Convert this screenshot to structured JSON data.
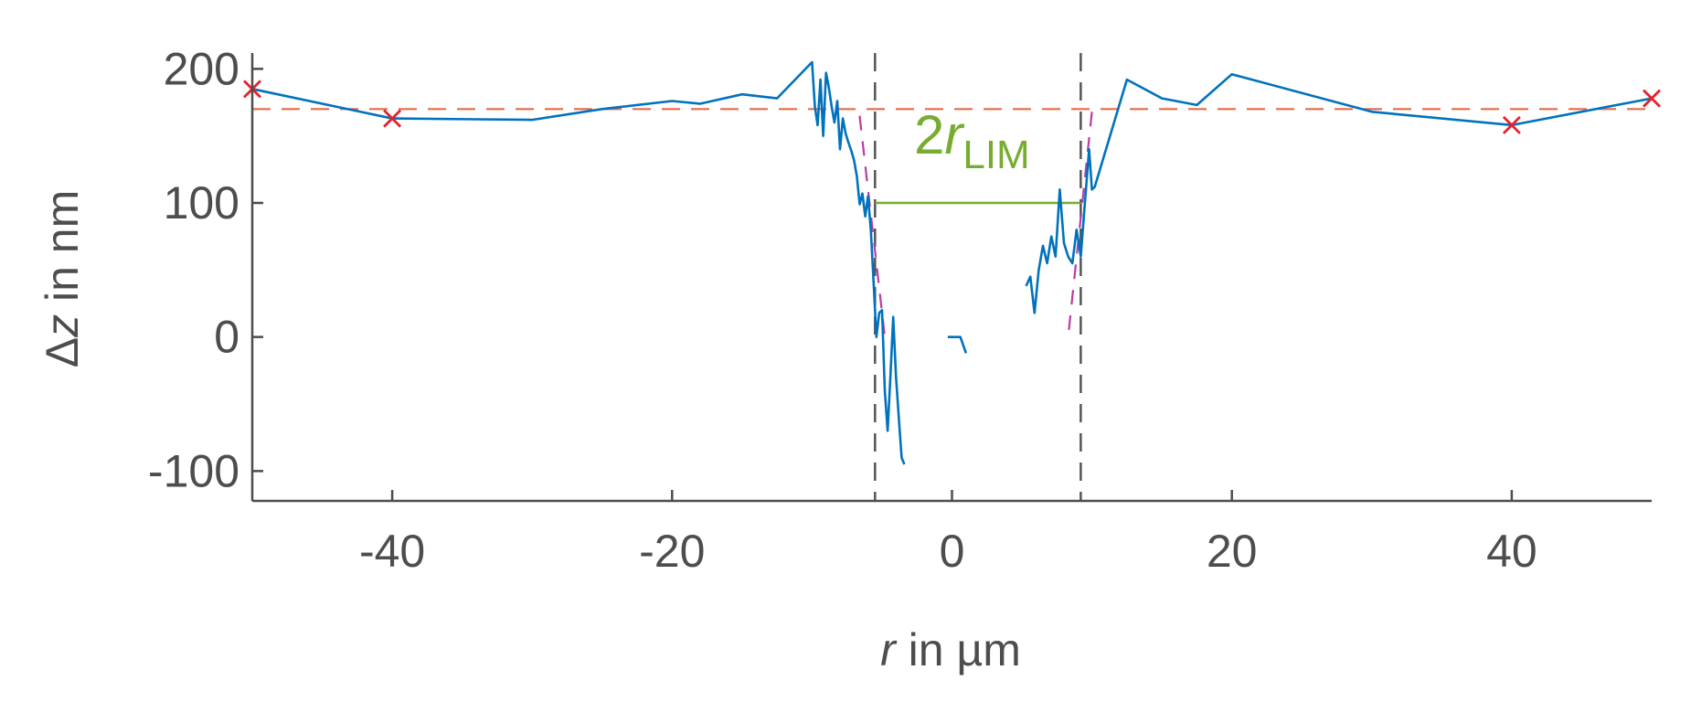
{
  "chart_data": {
    "type": "line",
    "xlabel_var": "r",
    "xlabel_rest": " in µm",
    "ylabel_var": "Δz",
    "ylabel_rest": " in nm",
    "xlim": [
      -50,
      50
    ],
    "ylim": [
      -110,
      205
    ],
    "xticks": [
      -40,
      -20,
      0,
      20,
      40
    ],
    "yticks": [
      -100,
      0,
      100,
      200
    ],
    "grid": false,
    "baseline_y": 170,
    "limit_x": [
      -5.5,
      9.2
    ],
    "lim_bar_y": 100,
    "annotation_prefix": "2",
    "annotation_var": "r",
    "annotation_sub": "LIM",
    "reference_points": [
      {
        "x": -50,
        "y": 185
      },
      {
        "x": -40,
        "y": 163
      },
      {
        "x": 40,
        "y": 158
      },
      {
        "x": 50,
        "y": 178
      }
    ],
    "series": [
      {
        "values_x": [
          -50,
          -40,
          -30,
          -25,
          -20,
          -18,
          -15,
          -12.5,
          -10,
          -9.8,
          -9.6,
          -9.4,
          -9.2,
          -9.0,
          -8.8,
          -8.6,
          -8.4,
          -8.2,
          -8.0,
          -7.8,
          -7.6,
          -7.4,
          -7.2,
          -7.0,
          -6.8,
          -6.6,
          -6.4,
          -6.2,
          -6.0,
          -5.8,
          -5.6,
          -5.4,
          -5.2,
          -5.0,
          -4.8,
          -4.6,
          -4.4,
          -4.2,
          -4.0,
          -3.8,
          -3.6,
          -3.4
        ],
        "values_y": [
          185,
          163,
          162,
          170,
          176,
          174,
          181,
          178,
          205,
          172,
          158,
          192,
          150,
          197,
          186,
          172,
          160,
          176,
          140,
          163,
          152,
          145,
          139,
          132,
          120,
          99,
          107,
          90,
          105,
          80,
          40,
          0,
          18,
          20,
          -40,
          -70,
          -30,
          15,
          -30,
          -60,
          -90,
          -95
        ],
        "color": "#0072bd"
      },
      {
        "values_x": [
          -0.3,
          0.6,
          1.0
        ],
        "values_y": [
          0,
          0,
          -12
        ],
        "color": "#0072bd"
      },
      {
        "values_x": [
          5.3,
          5.6,
          5.9,
          6.2,
          6.5,
          6.8,
          7.1,
          7.4,
          7.7,
          8.0,
          8.3,
          8.6,
          8.9,
          9.2,
          9.5,
          9.8,
          10.0,
          10.2,
          12.5,
          15,
          17.5,
          20,
          30,
          40,
          50
        ],
        "values_y": [
          38,
          45,
          18,
          50,
          68,
          55,
          75,
          60,
          110,
          70,
          60,
          55,
          80,
          60,
          100,
          140,
          110,
          112,
          192,
          178,
          173,
          196,
          168,
          158,
          178
        ],
        "color": "#0072bd"
      }
    ],
    "fit_lines": [
      {
        "x": [
          -6.6,
          -4.8
        ],
        "y": [
          165,
          0
        ],
        "color": "#b83ca6"
      },
      {
        "x": [
          10.0,
          8.3
        ],
        "y": [
          168,
          0
        ],
        "color": "#b83ca6"
      }
    ],
    "colors": {
      "axis": "#4d4d4d",
      "baseline": "#e36d4c",
      "limit": "#555555",
      "annotation": "#77ac30",
      "marker": "#e8202a"
    }
  }
}
